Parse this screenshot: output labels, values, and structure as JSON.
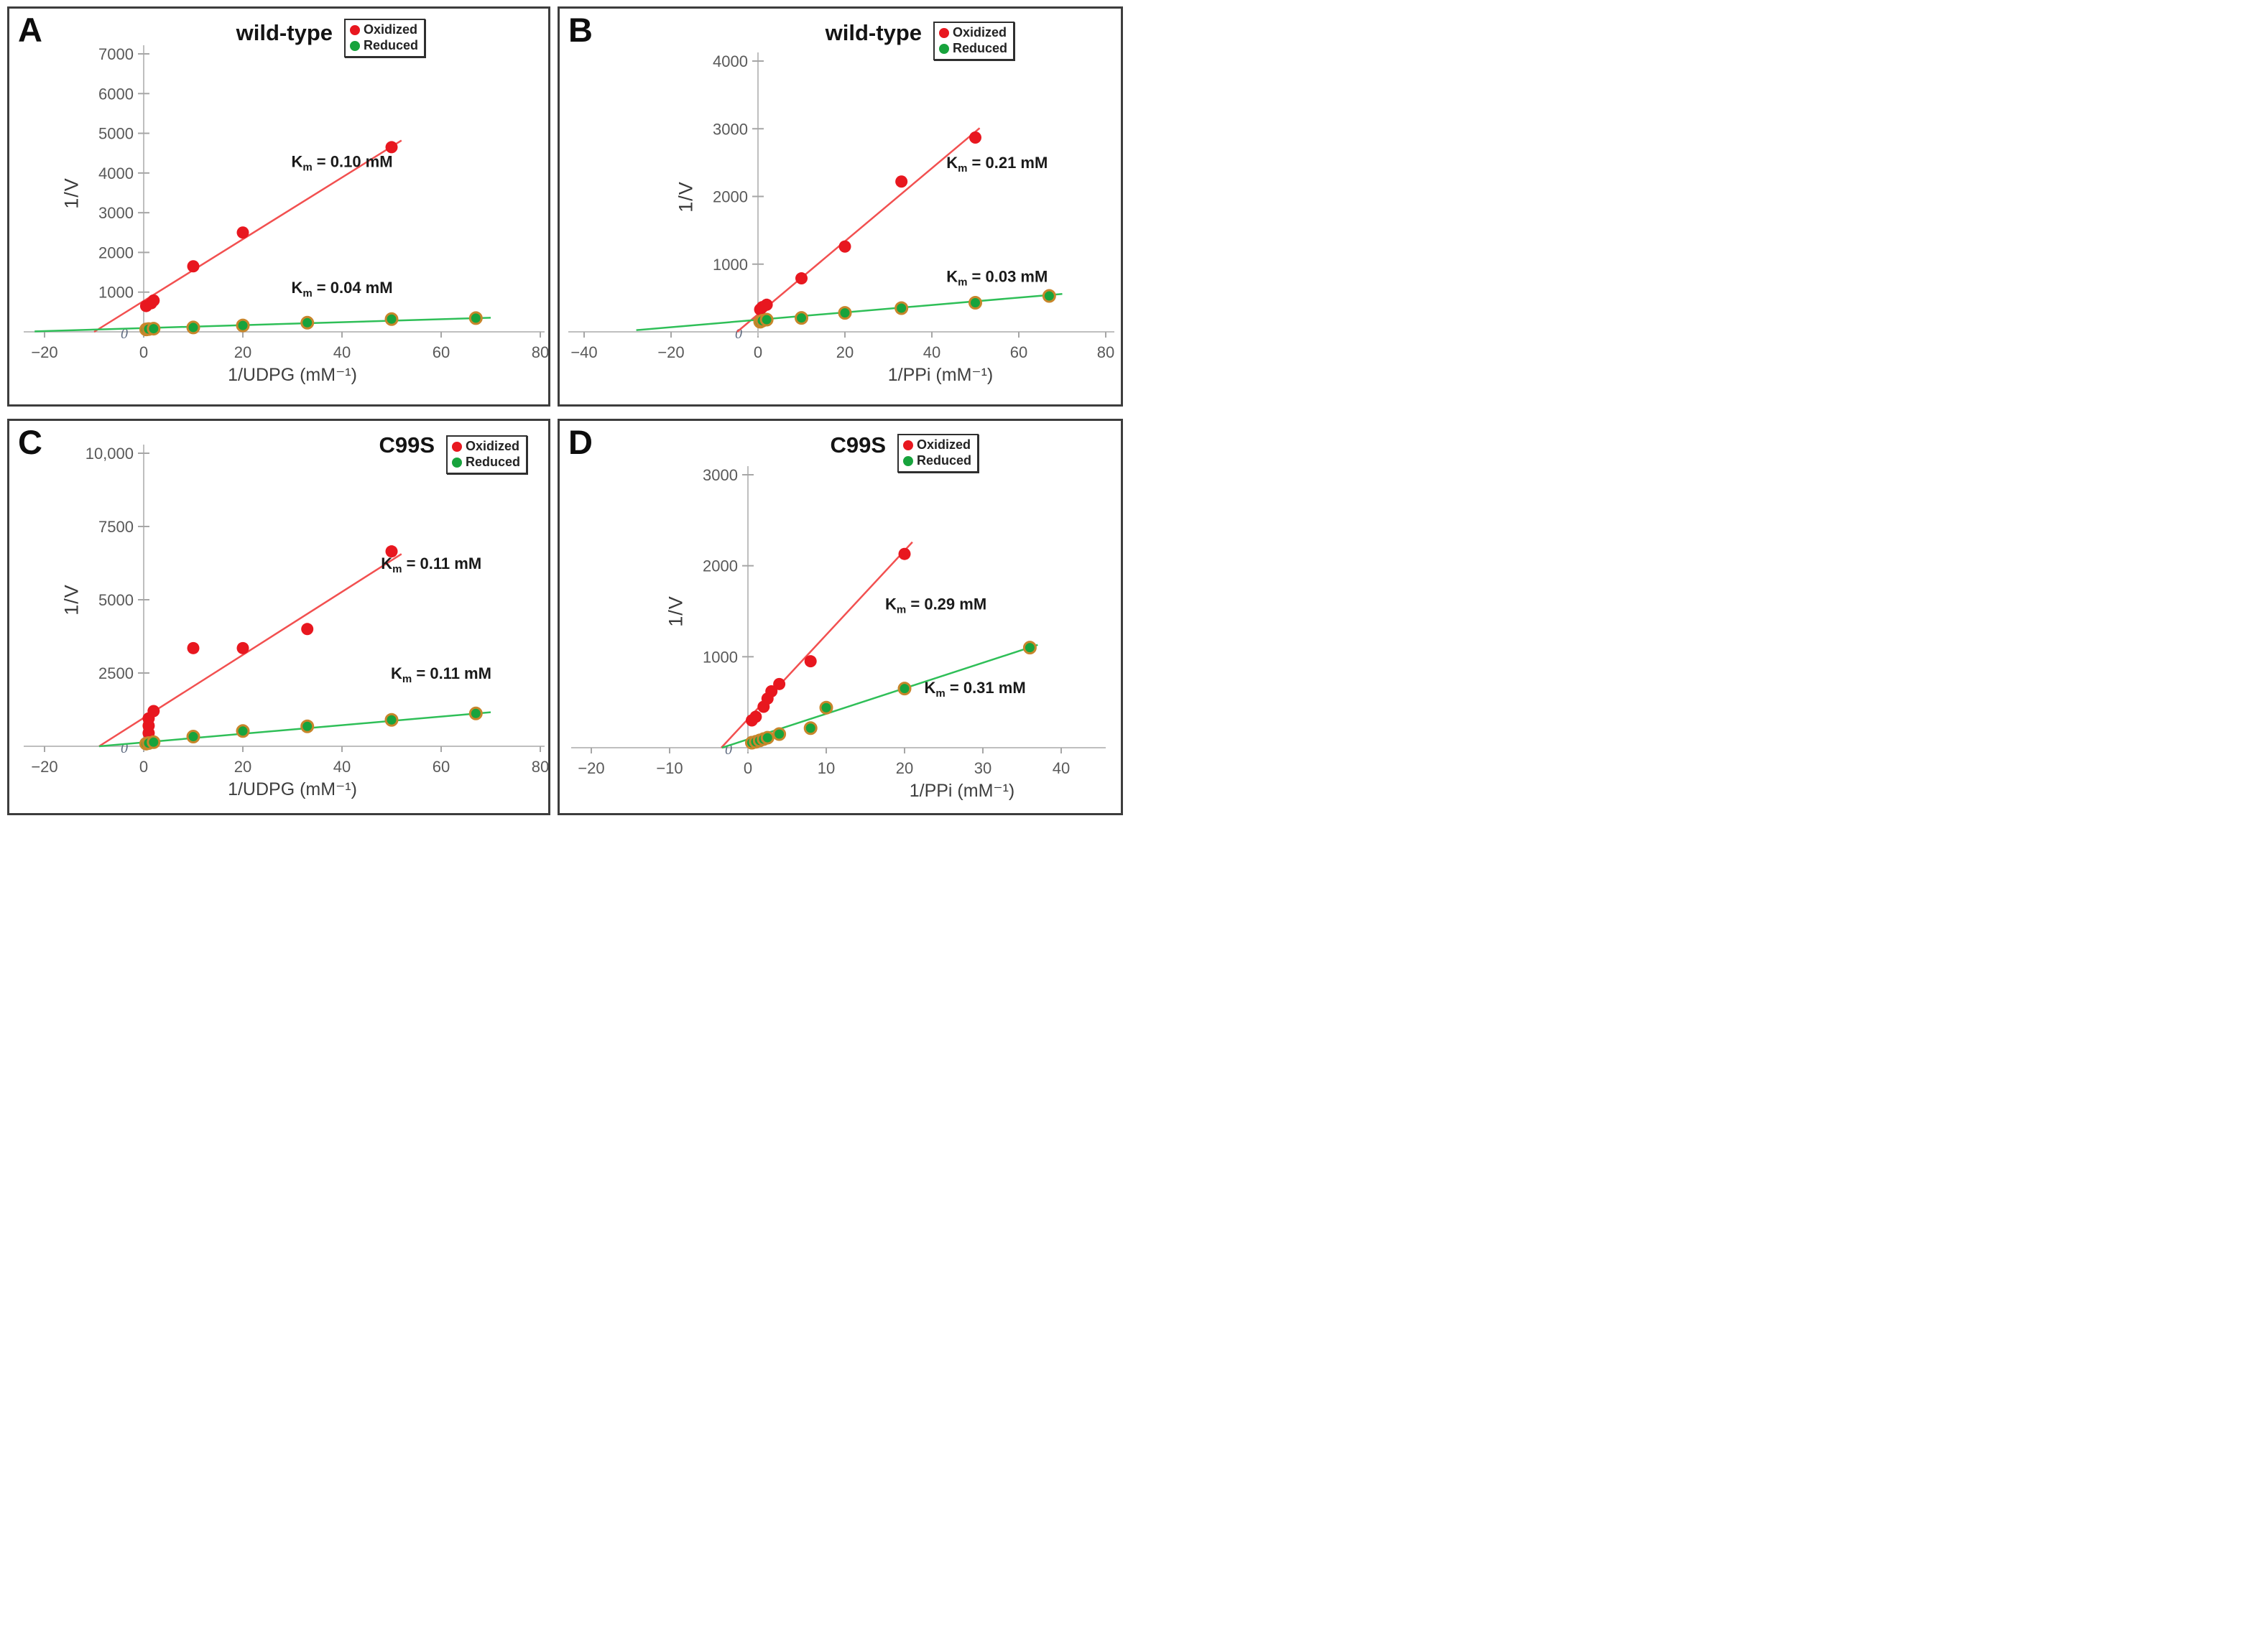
{
  "colors": {
    "oxidized": "#e8171f",
    "reduced": "#17a33c",
    "reduced_border": "#c8862b",
    "red_line": "#f25050",
    "green_line": "#2fbf58",
    "axis_line": "#bfbfbf",
    "tick_mark": "#a6a6a6",
    "tick_text": "#595959",
    "axis_title_text": "#3f3f3f",
    "annotation_text": "#1a1a1a",
    "origin_text": "#5f6b80",
    "panel_border": "#3d3d3d"
  },
  "chart_data": [
    {
      "panel_label": "A",
      "title": "wild-type",
      "type": "scatter",
      "xlabel": "1/UDPG (mM⁻¹)",
      "ylabel": "1/V",
      "xlim": [
        -20,
        80
      ],
      "ylim": [
        0,
        7000
      ],
      "grid": false,
      "legend_position": "top-right",
      "origin_label": "0",
      "xticks": [
        {
          "v": -20,
          "label": "−20"
        },
        {
          "v": 0,
          "label": "0"
        },
        {
          "v": 20,
          "label": "20"
        },
        {
          "v": 40,
          "label": "40"
        },
        {
          "v": 60,
          "label": "60"
        },
        {
          "v": 80,
          "label": "80"
        }
      ],
      "yticks": [
        {
          "v": 7000,
          "label": "7000"
        },
        {
          "v": 6000,
          "label": "6000"
        },
        {
          "v": 5000,
          "label": "5000"
        },
        {
          "v": 4000,
          "label": "4000"
        },
        {
          "v": 3000,
          "label": "3000"
        },
        {
          "v": 2000,
          "label": "2000"
        },
        {
          "v": 1000,
          "label": "1000"
        }
      ],
      "legend": [
        {
          "label": "Oxidized",
          "color_key": "oxidized"
        },
        {
          "label": "Reduced",
          "color_key": "reduced"
        }
      ],
      "series": [
        {
          "name": "Oxidized",
          "color_key": "oxidized",
          "line_key": "red_line",
          "points": [
            [
              0.5,
              650
            ],
            [
              1.5,
              720
            ],
            [
              2,
              790
            ],
            [
              10,
              1650
            ],
            [
              20,
              2500
            ],
            [
              50,
              4650
            ]
          ],
          "trendline": [
            [
              -10,
              0
            ],
            [
              52,
              4820
            ]
          ],
          "km": {
            "value": "0.10 mM",
            "x": 40,
            "y": 4150
          }
        },
        {
          "name": "Reduced",
          "color_key": "reduced",
          "border_key": "reduced_border",
          "line_key": "green_line",
          "points": [
            [
              0.5,
              60
            ],
            [
              1,
              70
            ],
            [
              2,
              80
            ],
            [
              10,
              110
            ],
            [
              20,
              160
            ],
            [
              33,
              230
            ],
            [
              50,
              320
            ],
            [
              67,
              345
            ]
          ],
          "trendline": [
            [
              -22,
              12
            ],
            [
              70,
              355
            ]
          ],
          "km": {
            "value": "0.04 mM",
            "x": 40,
            "y": 980
          }
        }
      ]
    },
    {
      "panel_label": "B",
      "title": "wild-type",
      "type": "scatter",
      "xlabel": "1/PPi (mM⁻¹)",
      "ylabel": "1/V",
      "xlim": [
        -40,
        80
      ],
      "ylim": [
        0,
        4000
      ],
      "grid": false,
      "legend_position": "top-right",
      "origin_label": "0",
      "xticks": [
        {
          "v": -40,
          "label": "−40"
        },
        {
          "v": -20,
          "label": "−20"
        },
        {
          "v": 0,
          "label": "0"
        },
        {
          "v": 20,
          "label": "20"
        },
        {
          "v": 40,
          "label": "40"
        },
        {
          "v": 60,
          "label": "60"
        },
        {
          "v": 80,
          "label": "80"
        }
      ],
      "yticks": [
        {
          "v": 4000,
          "label": "4000"
        },
        {
          "v": 3000,
          "label": "3000"
        },
        {
          "v": 2000,
          "label": "2000"
        },
        {
          "v": 1000,
          "label": "1000"
        }
      ],
      "legend": [
        {
          "label": "Oxidized",
          "color_key": "oxidized"
        },
        {
          "label": "Reduced",
          "color_key": "reduced"
        }
      ],
      "series": [
        {
          "name": "Oxidized",
          "color_key": "oxidized",
          "line_key": "red_line",
          "points": [
            [
              0.5,
              330
            ],
            [
              1,
              365
            ],
            [
              2,
              400
            ],
            [
              10,
              790
            ],
            [
              20,
              1260
            ],
            [
              33,
              2220
            ],
            [
              50,
              2870
            ]
          ],
          "trendline": [
            [
              -4.8,
              0
            ],
            [
              51,
              3010
            ]
          ],
          "km": {
            "value": "0.21 mM",
            "x": 55,
            "y": 2420
          }
        },
        {
          "name": "Reduced",
          "color_key": "reduced",
          "border_key": "reduced_border",
          "line_key": "green_line",
          "points": [
            [
              0.5,
              150
            ],
            [
              1,
              165
            ],
            [
              2,
              180
            ],
            [
              10,
              205
            ],
            [
              20,
              280
            ],
            [
              33,
              350
            ],
            [
              50,
              430
            ],
            [
              67,
              530
            ]
          ],
          "trendline": [
            [
              -28,
              25
            ],
            [
              70,
              560
            ]
          ],
          "km": {
            "value": "0.03 mM",
            "x": 55,
            "y": 740
          }
        }
      ]
    },
    {
      "panel_label": "C",
      "title": "C99S",
      "type": "scatter",
      "xlabel": "1/UDPG (mM⁻¹)",
      "ylabel": "1/V",
      "xlim": [
        -20,
        80
      ],
      "ylim": [
        0,
        10000
      ],
      "grid": false,
      "legend_position": "top-right",
      "origin_label": "0",
      "xticks": [
        {
          "v": -20,
          "label": "−20"
        },
        {
          "v": 0,
          "label": "0"
        },
        {
          "v": 20,
          "label": "20"
        },
        {
          "v": 40,
          "label": "40"
        },
        {
          "v": 60,
          "label": "60"
        },
        {
          "v": 80,
          "label": "80"
        }
      ],
      "yticks": [
        {
          "v": 10000,
          "label": "10,000"
        },
        {
          "v": 7500,
          "label": "7500"
        },
        {
          "v": 5000,
          "label": "5000"
        },
        {
          "v": 2500,
          "label": "2500"
        }
      ],
      "legend": [
        {
          "label": "Oxidized",
          "color_key": "oxidized"
        },
        {
          "label": "Reduced",
          "color_key": "reduced"
        }
      ],
      "series": [
        {
          "name": "Oxidized",
          "color_key": "oxidized",
          "line_key": "red_line",
          "points": [
            [
              1,
              450
            ],
            [
              1,
              700
            ],
            [
              1,
              950
            ],
            [
              2,
              1200
            ],
            [
              10,
              3350
            ],
            [
              20,
              3350
            ],
            [
              33,
              4000
            ],
            [
              50,
              6650
            ]
          ],
          "trendline": [
            [
              -9,
              0
            ],
            [
              52,
              6560
            ]
          ],
          "km": {
            "value": "0.11 mM",
            "x": 58,
            "y": 6050
          }
        },
        {
          "name": "Reduced",
          "color_key": "reduced",
          "border_key": "reduced_border",
          "line_key": "green_line",
          "points": [
            [
              0.5,
              90
            ],
            [
              1,
              110
            ],
            [
              2,
              140
            ],
            [
              10,
              330
            ],
            [
              20,
              520
            ],
            [
              33,
              680
            ],
            [
              50,
              900
            ],
            [
              67,
              1120
            ]
          ],
          "trendline": [
            [
              -9,
              0
            ],
            [
              70,
              1160
            ]
          ],
          "km": {
            "value": "0.11 mM",
            "x": 60,
            "y": 2300
          }
        }
      ]
    },
    {
      "panel_label": "D",
      "title": "C99S",
      "type": "scatter",
      "xlabel": "1/PPi (mM⁻¹)",
      "ylabel": "1/V",
      "xlim": [
        -20,
        40
      ],
      "ylim": [
        0,
        3000
      ],
      "grid": false,
      "legend_position": "top-right",
      "origin_label": "0",
      "xticks": [
        {
          "v": -20,
          "label": "−20"
        },
        {
          "v": -10,
          "label": "−10"
        },
        {
          "v": 0,
          "label": "0"
        },
        {
          "v": 10,
          "label": "10"
        },
        {
          "v": 20,
          "label": "20"
        },
        {
          "v": 30,
          "label": "30"
        },
        {
          "v": 40,
          "label": "40"
        }
      ],
      "yticks": [
        {
          "v": 3000,
          "label": "3000"
        },
        {
          "v": 2000,
          "label": "2000"
        },
        {
          "v": 1000,
          "label": "1000"
        }
      ],
      "legend": [
        {
          "label": "Oxidized",
          "color_key": "oxidized"
        },
        {
          "label": "Reduced",
          "color_key": "reduced"
        }
      ],
      "series": [
        {
          "name": "Oxidized",
          "color_key": "oxidized",
          "line_key": "red_line",
          "points": [
            [
              0.5,
              300
            ],
            [
              1,
              340
            ],
            [
              2,
              450
            ],
            [
              2.5,
              540
            ],
            [
              3,
              620
            ],
            [
              4,
              700
            ],
            [
              8,
              950
            ],
            [
              20,
              2130
            ]
          ],
          "trendline": [
            [
              -3.4,
              0
            ],
            [
              21,
              2260
            ]
          ],
          "km": {
            "value": "0.29 mM",
            "x": 24,
            "y": 1520
          }
        },
        {
          "name": "Reduced",
          "color_key": "reduced",
          "border_key": "reduced_border",
          "line_key": "green_line",
          "points": [
            [
              0.5,
              55
            ],
            [
              1,
              65
            ],
            [
              1.5,
              80
            ],
            [
              2,
              95
            ],
            [
              2.5,
              110
            ],
            [
              4,
              150
            ],
            [
              8,
              215
            ],
            [
              10,
              440
            ],
            [
              20,
              650
            ],
            [
              36,
              1100
            ]
          ],
          "trendline": [
            [
              -3.3,
              0
            ],
            [
              37,
              1130
            ]
          ],
          "km": {
            "value": "0.31 mM",
            "x": 29,
            "y": 600
          }
        }
      ]
    }
  ]
}
